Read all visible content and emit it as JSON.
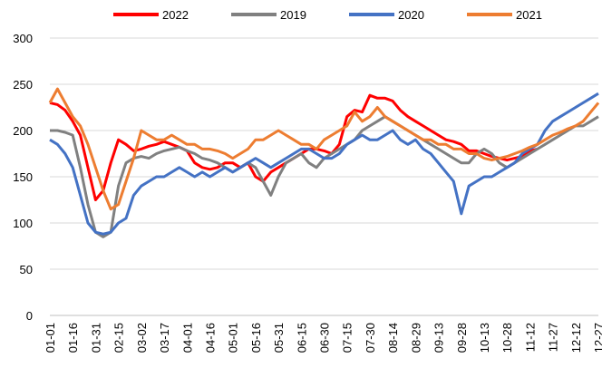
{
  "chart_data": {
    "type": "line",
    "categories": [
      "01-01",
      null,
      null,
      "01-16",
      null,
      null,
      "01-31",
      null,
      null,
      "02-15",
      null,
      null,
      "03-02",
      null,
      null,
      "03-17",
      null,
      null,
      "04-01",
      null,
      null,
      "04-16",
      null,
      null,
      "05-01",
      null,
      null,
      "05-16",
      null,
      null,
      "05-31",
      null,
      null,
      "06-15",
      null,
      null,
      "06-30",
      null,
      null,
      "07-15",
      null,
      null,
      "07-30",
      null,
      null,
      "08-14",
      null,
      null,
      "08-29",
      null,
      null,
      "09-13",
      null,
      null,
      "09-28",
      null,
      null,
      "10-13",
      null,
      null,
      "10-28",
      null,
      null,
      "11-12",
      null,
      null,
      "11-27",
      null,
      null,
      "12-12",
      null,
      null,
      "12-27"
    ],
    "series": [
      {
        "name": "2022",
        "color": "#ff0000",
        "values": [
          230,
          228,
          222,
          210,
          195,
          160,
          125,
          135,
          165,
          190,
          185,
          178,
          180,
          183,
          185,
          188,
          185,
          182,
          178,
          165,
          160,
          158,
          160,
          165,
          165,
          160,
          165,
          150,
          145,
          155,
          160,
          165,
          170,
          175,
          180,
          180,
          178,
          175,
          185,
          215,
          222,
          220,
          238,
          235,
          235,
          232,
          222,
          215,
          210,
          205,
          200,
          195,
          190,
          188,
          185,
          178,
          178,
          175,
          172,
          170,
          168,
          170,
          172,
          178,
          180,
          null,
          null,
          null,
          null,
          null,
          null,
          null,
          null
        ]
      },
      {
        "name": "2019",
        "color": "#808080",
        "values": [
          200,
          200,
          198,
          195,
          160,
          120,
          90,
          85,
          90,
          140,
          165,
          170,
          172,
          170,
          175,
          178,
          180,
          182,
          178,
          175,
          170,
          168,
          165,
          160,
          155,
          160,
          165,
          160,
          145,
          130,
          150,
          165,
          170,
          175,
          165,
          160,
          170,
          175,
          180,
          185,
          190,
          200,
          205,
          210,
          215,
          210,
          205,
          200,
          195,
          190,
          185,
          180,
          175,
          170,
          165,
          165,
          175,
          180,
          175,
          165,
          160,
          165,
          170,
          175,
          180,
          185,
          190,
          195,
          200,
          205,
          205,
          210,
          215
        ]
      },
      {
        "name": "2020",
        "color": "#4472c4",
        "values": [
          190,
          185,
          175,
          160,
          130,
          100,
          90,
          88,
          90,
          100,
          105,
          130,
          140,
          145,
          150,
          150,
          155,
          160,
          155,
          150,
          155,
          150,
          155,
          160,
          155,
          160,
          165,
          170,
          165,
          160,
          165,
          170,
          175,
          180,
          180,
          175,
          170,
          170,
          175,
          185,
          190,
          195,
          190,
          190,
          195,
          200,
          190,
          185,
          190,
          180,
          175,
          165,
          155,
          145,
          110,
          140,
          145,
          150,
          150,
          155,
          160,
          165,
          175,
          180,
          185,
          200,
          210,
          215,
          220,
          225,
          230,
          235,
          240
        ]
      },
      {
        "name": "2021",
        "color": "#ed7d31",
        "values": [
          230,
          245,
          230,
          215,
          205,
          185,
          160,
          135,
          115,
          120,
          145,
          170,
          200,
          195,
          190,
          190,
          195,
          190,
          185,
          185,
          180,
          180,
          178,
          175,
          170,
          175,
          180,
          190,
          190,
          195,
          200,
          195,
          190,
          185,
          185,
          180,
          190,
          195,
          200,
          205,
          220,
          210,
          215,
          225,
          215,
          210,
          205,
          200,
          195,
          190,
          190,
          185,
          185,
          180,
          180,
          175,
          175,
          170,
          168,
          170,
          172,
          175,
          178,
          182,
          185,
          190,
          195,
          198,
          202,
          205,
          210,
          220,
          230
        ]
      }
    ],
    "ylim": [
      0,
      300
    ],
    "yticks": [
      0,
      50,
      100,
      150,
      200,
      250,
      300
    ],
    "grid": true,
    "legend": "top"
  }
}
